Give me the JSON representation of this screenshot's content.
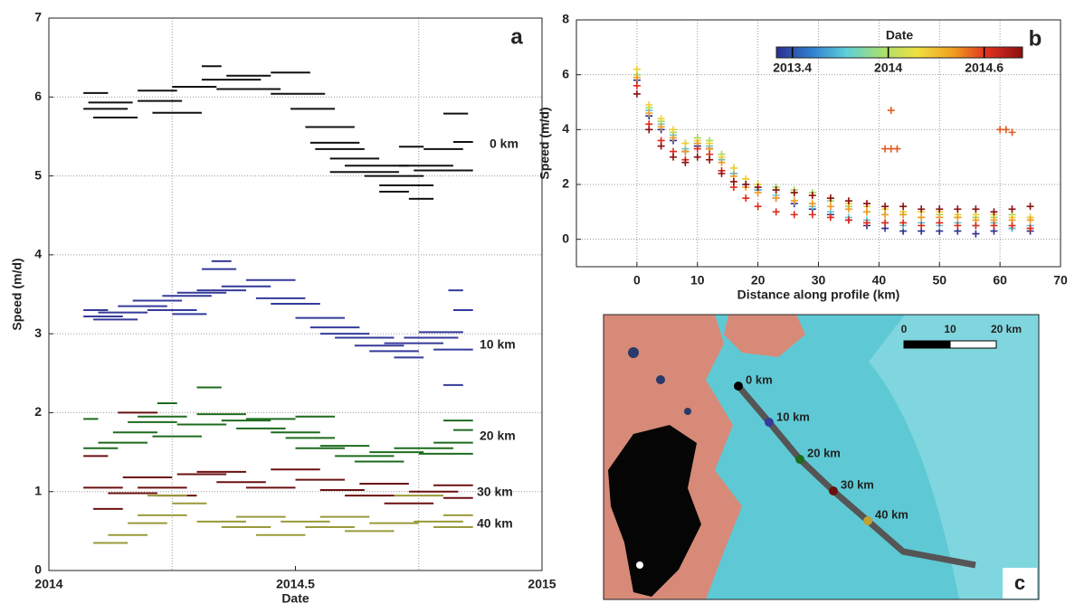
{
  "chart_data": [
    {
      "type": "segments",
      "panel": "a",
      "x_label": "Date",
      "y_label": "Speed (m/d)",
      "xlim": [
        2014,
        2015
      ],
      "xticks": [
        2014,
        2014.5,
        2015
      ],
      "xgrid": [
        2014.25,
        2014.75
      ],
      "ylim": [
        0,
        7
      ],
      "yticks": [
        0,
        1,
        2,
        3,
        4,
        5,
        6,
        7
      ],
      "grid": true,
      "series": [
        {
          "name": "0 km",
          "color": "#111111",
          "x_start": [
            2014.07,
            2014.07,
            2014.08,
            2014.09,
            2014.18,
            2014.18,
            2014.21,
            2014.25,
            2014.31,
            2014.31,
            2014.36,
            2014.34,
            2014.45,
            2014.45,
            2014.49,
            2014.52,
            2014.53,
            2014.54,
            2014.57,
            2014.6,
            2014.57,
            2014.64,
            2014.67,
            2014.71,
            2014.74,
            2014.76,
            2014.8,
            2014.71,
            2014.82,
            2014.67,
            2014.73
          ],
          "x_end": [
            2014.12,
            2014.16,
            2014.17,
            2014.18,
            2014.26,
            2014.27,
            2014.31,
            2014.34,
            2014.35,
            2014.43,
            2014.45,
            2014.47,
            2014.53,
            2014.56,
            2014.58,
            2014.62,
            2014.63,
            2014.64,
            2014.67,
            2014.73,
            2014.71,
            2014.76,
            2014.78,
            2014.82,
            2014.86,
            2014.84,
            2014.85,
            2014.76,
            2014.86,
            2014.73,
            2014.78
          ],
          "values": [
            6.05,
            5.85,
            5.93,
            5.74,
            6.08,
            5.95,
            5.8,
            6.13,
            6.39,
            6.22,
            6.27,
            6.1,
            6.31,
            6.04,
            5.85,
            5.62,
            5.42,
            5.34,
            5.22,
            5.13,
            5.05,
            5.0,
            4.88,
            5.13,
            5.07,
            5.34,
            5.79,
            5.37,
            5.43,
            4.8,
            4.71
          ]
        },
        {
          "name": "10 km",
          "color": "#343a9a",
          "x_start": [
            2014.07,
            2014.07,
            2014.09,
            2014.1,
            2014.14,
            2014.17,
            2014.2,
            2014.23,
            2014.26,
            2014.25,
            2014.3,
            2014.33,
            2014.35,
            2014.31,
            2014.4,
            2014.42,
            2014.45,
            2014.5,
            2014.53,
            2014.55,
            2014.58,
            2014.62,
            2014.65,
            2014.68,
            2014.72,
            2014.75,
            2014.78,
            2014.81,
            2014.82,
            2014.7,
            2014.8
          ],
          "x_end": [
            2014.12,
            2014.15,
            2014.18,
            2014.2,
            2014.24,
            2014.27,
            2014.3,
            2014.33,
            2014.36,
            2014.32,
            2014.4,
            2014.37,
            2014.45,
            2014.38,
            2014.5,
            2014.52,
            2014.55,
            2014.6,
            2014.63,
            2014.65,
            2014.7,
            2014.72,
            2014.75,
            2014.8,
            2014.83,
            2014.84,
            2014.86,
            2014.84,
            2014.86,
            2014.76,
            2014.84
          ],
          "values": [
            3.3,
            3.22,
            3.18,
            3.27,
            3.35,
            3.42,
            3.3,
            3.48,
            3.52,
            3.25,
            3.55,
            3.92,
            3.6,
            3.82,
            3.68,
            3.45,
            3.38,
            3.2,
            3.08,
            3.0,
            2.95,
            2.85,
            2.78,
            2.88,
            2.95,
            3.02,
            2.8,
            3.55,
            3.3,
            2.7,
            2.35
          ]
        },
        {
          "name": "20 km",
          "color": "#1e6b1e",
          "x_start": [
            2014.07,
            2014.07,
            2014.1,
            2014.13,
            2014.16,
            2014.18,
            2014.21,
            2014.22,
            2014.26,
            2014.3,
            2014.3,
            2014.35,
            2014.38,
            2014.4,
            2014.45,
            2014.48,
            2014.5,
            2014.55,
            2014.58,
            2014.62,
            2014.65,
            2014.7,
            2014.75,
            2014.78,
            2014.8,
            2014.82,
            2014.5
          ],
          "x_end": [
            2014.1,
            2014.14,
            2014.2,
            2014.22,
            2014.26,
            2014.28,
            2014.31,
            2014.26,
            2014.36,
            2014.35,
            2014.4,
            2014.45,
            2014.48,
            2014.5,
            2014.55,
            2014.58,
            2014.6,
            2014.65,
            2014.7,
            2014.72,
            2014.76,
            2014.82,
            2014.86,
            2014.86,
            2014.86,
            2014.86,
            2014.58
          ],
          "values": [
            1.92,
            1.55,
            1.62,
            1.75,
            1.88,
            1.95,
            1.7,
            2.12,
            1.85,
            2.32,
            1.98,
            1.9,
            1.8,
            1.92,
            1.75,
            1.68,
            1.55,
            1.58,
            1.45,
            1.38,
            1.5,
            1.55,
            1.48,
            1.62,
            1.9,
            1.78,
            1.95
          ]
        },
        {
          "name": "30 km",
          "color": "#6b1010",
          "x_start": [
            2014.07,
            2014.07,
            2014.09,
            2014.12,
            2014.14,
            2014.15,
            2014.18,
            2014.22,
            2014.26,
            2014.3,
            2014.34,
            2014.4,
            2014.45,
            2014.5,
            2014.55,
            2014.6,
            2014.63,
            2014.68,
            2014.73,
            2014.78,
            2014.8
          ],
          "x_end": [
            2014.12,
            2014.15,
            2014.15,
            2014.22,
            2014.22,
            2014.25,
            2014.28,
            2014.3,
            2014.36,
            2014.4,
            2014.44,
            2014.5,
            2014.55,
            2014.6,
            2014.64,
            2014.7,
            2014.73,
            2014.78,
            2014.83,
            2014.86,
            2014.86
          ],
          "values": [
            1.45,
            1.05,
            0.78,
            0.98,
            2.0,
            1.18,
            1.05,
            0.95,
            1.22,
            1.25,
            1.12,
            1.05,
            1.28,
            1.15,
            1.02,
            0.95,
            1.1,
            0.85,
            1.0,
            1.08,
            0.92
          ]
        },
        {
          "name": "40 km",
          "color": "#9a9a3a",
          "x_start": [
            2014.09,
            2014.12,
            2014.16,
            2014.18,
            2014.2,
            2014.25,
            2014.3,
            2014.35,
            2014.38,
            2014.42,
            2014.47,
            2014.52,
            2014.55,
            2014.6,
            2014.65,
            2014.7,
            2014.74,
            2014.78,
            2014.8
          ],
          "x_end": [
            2014.16,
            2014.2,
            2014.24,
            2014.28,
            2014.28,
            2014.32,
            2014.4,
            2014.45,
            2014.48,
            2014.52,
            2014.57,
            2014.62,
            2014.65,
            2014.7,
            2014.75,
            2014.8,
            2014.84,
            2014.86,
            2014.86
          ],
          "values": [
            0.35,
            0.45,
            0.6,
            0.7,
            0.95,
            0.85,
            0.62,
            0.55,
            0.68,
            0.45,
            0.62,
            0.55,
            0.68,
            0.5,
            0.6,
            0.95,
            0.62,
            0.55,
            0.7
          ]
        }
      ]
    },
    {
      "type": "scatter",
      "panel": "b",
      "x_label": "Distance along profile (km)",
      "y_label": "Speed (m/d)",
      "xlim": [
        -10,
        70
      ],
      "xticks": [
        0,
        10,
        20,
        30,
        40,
        50,
        60,
        70
      ],
      "ylim": [
        -1,
        8
      ],
      "yticks": [
        0,
        2,
        4,
        6,
        8
      ],
      "grid": true,
      "colorbar": {
        "title": "Date",
        "lim": [
          2013.3,
          2014.84
        ],
        "ticks": [
          2013.4,
          2014,
          2014.6
        ],
        "colors": [
          "#2b2f8f",
          "#2f7fd0",
          "#5fd0d8",
          "#a8e070",
          "#f0e040",
          "#f0a020",
          "#e03020",
          "#8a1010"
        ]
      },
      "series": [
        {
          "color": "#2b2f8f",
          "x": [
            0,
            2,
            4,
            6,
            8,
            10,
            12,
            14,
            16,
            18,
            20,
            23,
            26,
            29,
            32,
            35,
            38,
            41,
            44,
            47,
            50,
            53,
            56,
            59,
            62,
            65
          ],
          "values": [
            5.8,
            4.5,
            4.0,
            3.6,
            3.2,
            3.4,
            3.3,
            2.9,
            2.4,
            2.0,
            1.8,
            1.5,
            1.3,
            1.1,
            0.9,
            0.7,
            0.5,
            0.4,
            0.3,
            0.3,
            0.3,
            0.3,
            0.2,
            0.3,
            0.4,
            0.3
          ]
        },
        {
          "color": "#5fc8d8",
          "x": [
            0,
            2,
            4,
            6,
            8,
            10,
            12,
            14,
            16,
            18,
            20,
            23,
            26,
            29,
            32,
            35,
            38,
            41,
            44,
            47,
            50,
            53,
            56,
            59,
            62,
            65
          ],
          "values": [
            6.0,
            4.7,
            4.2,
            3.8,
            3.3,
            3.5,
            3.4,
            2.9,
            2.4,
            2.0,
            1.8,
            1.6,
            1.4,
            1.2,
            1.0,
            0.8,
            0.7,
            0.6,
            0.5,
            0.6,
            0.5,
            0.6,
            0.5,
            0.6,
            0.4,
            0.5
          ]
        },
        {
          "color": "#9ed860",
          "x": [
            0,
            2,
            4,
            6,
            8,
            10,
            12,
            14,
            16,
            18,
            20,
            23,
            26,
            29,
            32,
            35,
            38,
            41,
            44,
            47,
            50,
            53,
            56,
            59,
            62,
            65
          ],
          "values": [
            6.0,
            4.8,
            4.3,
            3.9,
            3.5,
            3.7,
            3.6,
            3.1,
            2.6,
            2.2,
            2.0,
            1.9,
            1.8,
            1.7,
            1.4,
            1.2,
            1.0,
            0.9,
            0.9,
            0.8,
            0.9,
            0.8,
            0.8,
            0.8,
            0.9,
            0.8
          ]
        },
        {
          "color": "#f0d030",
          "x": [
            0,
            2,
            4,
            6,
            8,
            10,
            12,
            14,
            16,
            18,
            20,
            23,
            26,
            29,
            32,
            35,
            38,
            41,
            44,
            47,
            50,
            53,
            56,
            59,
            62,
            65
          ],
          "values": [
            6.2,
            4.9,
            4.4,
            4.0,
            3.5,
            3.6,
            3.5,
            3.0,
            2.6,
            2.2,
            2.0,
            1.8,
            1.7,
            1.6,
            1.5,
            1.3,
            1.2,
            1.1,
            1.0,
            1.0,
            1.0,
            0.9,
            0.9,
            0.9,
            0.8,
            0.8
          ]
        },
        {
          "color": "#f09a20",
          "x": [
            0,
            2,
            4,
            6,
            8,
            10,
            12,
            14,
            16,
            18,
            20,
            23,
            26,
            29,
            32,
            35,
            38,
            41,
            44,
            47,
            50,
            53,
            56,
            59,
            62,
            65
          ],
          "values": [
            5.9,
            4.6,
            4.1,
            3.7,
            3.2,
            3.5,
            3.3,
            2.8,
            2.3,
            1.9,
            1.7,
            1.5,
            1.4,
            1.3,
            1.2,
            1.1,
            1.0,
            0.9,
            0.9,
            0.8,
            0.8,
            0.8,
            0.7,
            0.7,
            0.7,
            0.7
          ]
        },
        {
          "color": "#e02818",
          "x": [
            0,
            2,
            4,
            6,
            8,
            10,
            12,
            14,
            16,
            18,
            20,
            23,
            26,
            29,
            32,
            35,
            38,
            41,
            44,
            47,
            50,
            53,
            56,
            59,
            62,
            65
          ],
          "values": [
            5.6,
            4.2,
            3.6,
            3.2,
            2.9,
            3.3,
            3.1,
            2.5,
            1.9,
            1.5,
            1.2,
            1.0,
            0.9,
            0.9,
            0.8,
            0.7,
            0.6,
            0.6,
            0.6,
            0.5,
            0.6,
            0.5,
            0.5,
            0.5,
            0.5,
            0.4
          ]
        },
        {
          "color": "#8a1010",
          "x": [
            0,
            2,
            4,
            6,
            8,
            10,
            12,
            14,
            16,
            18,
            20,
            23,
            26,
            29,
            32,
            35,
            38,
            41,
            44,
            47,
            50,
            53,
            56,
            59,
            62,
            65
          ],
          "values": [
            5.3,
            4.0,
            3.4,
            3.0,
            2.8,
            3.0,
            2.9,
            2.4,
            2.1,
            2.0,
            1.9,
            1.8,
            1.7,
            1.6,
            1.5,
            1.4,
            1.3,
            1.2,
            1.2,
            1.1,
            1.1,
            1.1,
            1.1,
            1.0,
            1.1,
            1.2
          ]
        },
        {
          "color": "#e05a20",
          "x": [
            42,
            41,
            42,
            43,
            60,
            61,
            62
          ],
          "values": [
            4.7,
            3.3,
            3.3,
            3.3,
            4.0,
            4.0,
            3.9
          ]
        }
      ]
    }
  ],
  "map": {
    "panel": "c",
    "scale_labels": [
      "0",
      "10",
      "20 km"
    ],
    "points": [
      {
        "label": "0 km"
      },
      {
        "label": "10 km"
      },
      {
        "label": "20 km"
      },
      {
        "label": "30 km"
      },
      {
        "label": "40 km"
      }
    ]
  }
}
